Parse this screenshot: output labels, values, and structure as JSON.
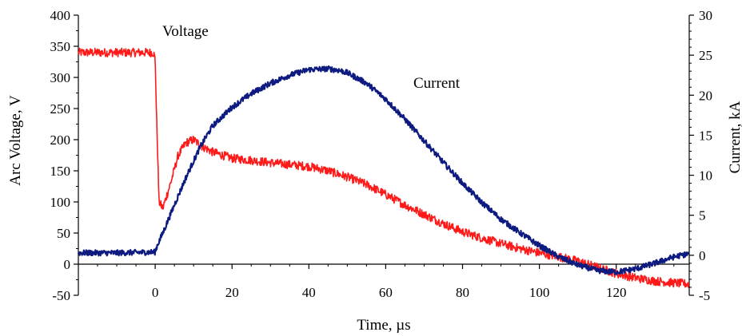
{
  "chart_data": {
    "type": "line",
    "xlabel": "Time, µs",
    "ylabel_left": "Arc Voltage, V",
    "ylabel_right": "Current, kA",
    "xlim": [
      -20,
      139
    ],
    "ylim_left": [
      -50,
      400
    ],
    "ylim_right": [
      -5,
      30
    ],
    "x_ticks": [
      0,
      20,
      40,
      60,
      80,
      100,
      120
    ],
    "y_ticks_left": [
      -50,
      0,
      50,
      100,
      150,
      200,
      250,
      300,
      350,
      400
    ],
    "y_ticks_right": [
      -5,
      0,
      5,
      10,
      15,
      20,
      25,
      30
    ],
    "grid": false,
    "legend": "inline labels",
    "series": [
      {
        "name": "Voltage",
        "axis": "left",
        "color": "#ff1a1a",
        "noise": 7,
        "x": [
          -20,
          -10,
          -0.5,
          0,
          0.3,
          1,
          2,
          4,
          6,
          8,
          10,
          12,
          15,
          20,
          25,
          30,
          35,
          40,
          45,
          50,
          55,
          60,
          65,
          70,
          75,
          80,
          85,
          90,
          95,
          100,
          105,
          110,
          115,
          120,
          125,
          130,
          135,
          139
        ],
        "y": [
          340,
          340,
          340,
          330,
          250,
          100,
          90,
          130,
          175,
          195,
          200,
          190,
          180,
          170,
          167,
          163,
          160,
          157,
          150,
          140,
          128,
          112,
          95,
          80,
          65,
          52,
          42,
          33,
          25,
          18,
          12,
          5,
          -5,
          -15,
          -22,
          -27,
          -30,
          -32
        ]
      },
      {
        "name": "Current",
        "axis": "right",
        "color": "#0d1a80",
        "noise": 0.35,
        "x": [
          -20,
          -10,
          0,
          0.5,
          2,
          5,
          8,
          10,
          12,
          15,
          20,
          25,
          30,
          35,
          40,
          45,
          48,
          50,
          55,
          60,
          65,
          70,
          75,
          80,
          85,
          90,
          95,
          100,
          105,
          110,
          115,
          120,
          125,
          130,
          135,
          139
        ],
        "y": [
          0.3,
          0.3,
          0.4,
          1.2,
          2.8,
          6.3,
          9.7,
          11.8,
          13.8,
          16.2,
          18.5,
          20.2,
          21.5,
          22.5,
          23.2,
          23.3,
          23.1,
          22.8,
          21.5,
          19.5,
          17,
          14.3,
          11.6,
          9,
          6.6,
          4.5,
          2.8,
          1.2,
          -0.2,
          -1.2,
          -1.9,
          -2.1,
          -1.7,
          -1.0,
          -0.2,
          0.2
        ]
      }
    ]
  }
}
